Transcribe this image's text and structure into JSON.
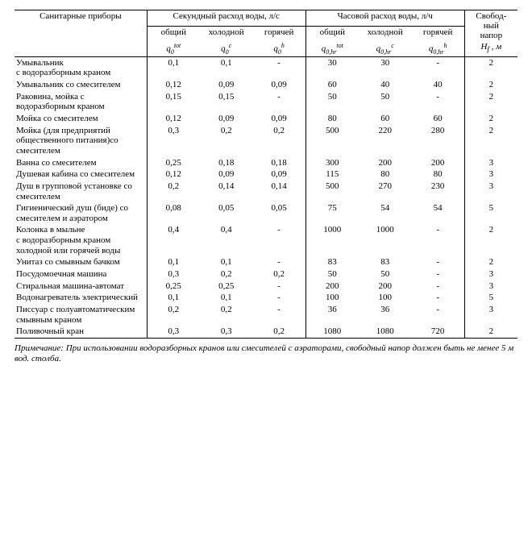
{
  "header": {
    "col_devices": "Санитарные приборы",
    "col_sec": "Секундный расход воды, л/с",
    "col_hr": "Часовой расход воды, л/ч",
    "col_nap": "Свобод-\nный напор",
    "sub_total": "общий",
    "sub_cold": "холодной",
    "sub_hot": "горячей",
    "f_q0tot": "q₀ᵗᵒᵗ",
    "f_q0c": "q₀ᶜ",
    "f_q0h": "q₀ʰ",
    "f_q0hrtot": "q₀,hrᵗᵒᵗ",
    "f_q0hrc": "q₀,hrᶜ",
    "f_q0hrh": "q₀,hrʰ",
    "f_Hf": "H_f , м"
  },
  "rows": [
    {
      "name": "Умывальник\nс водоразборным краном",
      "q0t": "0,1",
      "q0c": "0,1",
      "q0h": "-",
      "qht": "30",
      "qhc": "30",
      "qhh": "-",
      "hf": "2"
    },
    {
      "name": "Умывальник со смесителем",
      "q0t": "0,12",
      "q0c": "0,09",
      "q0h": "0,09",
      "qht": "60",
      "qhc": "40",
      "qhh": "40",
      "hf": "2"
    },
    {
      "name": "Раковина, мойка с водоразборным краном",
      "q0t": "0,15",
      "q0c": "0,15",
      "q0h": "-",
      "qht": "50",
      "qhc": "50",
      "qhh": "-",
      "hf": "2"
    },
    {
      "name": "Мойка со смесителем",
      "q0t": "0,12",
      "q0c": "0,09",
      "q0h": "0,09",
      "qht": "80",
      "qhc": "60",
      "qhh": "60",
      "hf": "2"
    },
    {
      "name": "Мойка (для предприятий общественного питания)со смесителем",
      "q0t": "0,3",
      "q0c": "0,2",
      "q0h": "0,2",
      "qht": "500",
      "qhc": "220",
      "qhh": "280",
      "hf": "2"
    },
    {
      "name": "Ванна со смесителем",
      "q0t": "0,25",
      "q0c": "0,18",
      "q0h": "0,18",
      "qht": "300",
      "qhc": "200",
      "qhh": "200",
      "hf": "3"
    },
    {
      "name": "Душевая кабина со смесителем",
      "q0t": "0,12",
      "q0c": "0,09",
      "q0h": "0,09",
      "qht": "115",
      "qhc": "80",
      "qhh": "80",
      "hf": "3"
    },
    {
      "name": "Душ в групповой установке со смесителем",
      "q0t": "0,2",
      "q0c": "0,14",
      "q0h": "0,14",
      "qht": "500",
      "qhc": "270",
      "qhh": "230",
      "hf": "3"
    },
    {
      "name": "Гигиенический душ (биде) со смесителем и аэратором",
      "q0t": "0,08",
      "q0c": "0,05",
      "q0h": "0,05",
      "qht": "75",
      "qhc": "54",
      "qhh": "54",
      "hf": "5"
    },
    {
      "name": "Колонка в мыльне\nс водоразборным краном холодной или горячей воды",
      "q0t": "0,4",
      "q0c": "0,4",
      "q0h": "-",
      "qht": "1000",
      "qhc": "1000",
      "qhh": "-",
      "hf": "2"
    },
    {
      "name": "Унитаз со смывным бачком",
      "q0t": "0,1",
      "q0c": "0,1",
      "q0h": "-",
      "qht": "83",
      "qhc": "83",
      "qhh": "-",
      "hf": "2"
    },
    {
      "name": "Посудомоечная машина",
      "q0t": "0,3",
      "q0c": "0,2",
      "q0h": "0,2",
      "qht": "50",
      "qhc": "50",
      "qhh": "-",
      "hf": "3"
    },
    {
      "name": "Стиральная машина-автомат",
      "q0t": "0,25",
      "q0c": "0,25",
      "q0h": "-",
      "qht": "200",
      "qhc": "200",
      "qhh": "-",
      "hf": "3"
    },
    {
      "name": "Водонагреватель электрический",
      "q0t": "0,1",
      "q0c": "0,1",
      "q0h": "-",
      "qht": "100",
      "qhc": "100",
      "qhh": "-",
      "hf": "5"
    },
    {
      "name": "Писсуар с полуавтоматическим смывным краном",
      "q0t": "0,2",
      "q0c": "0,2",
      "q0h": "-",
      "qht": "36",
      "qhc": "36",
      "qhh": "-",
      "hf": "3"
    },
    {
      "name": "Поливочный кран",
      "q0t": "0,3",
      "q0c": "0,3",
      "q0h": "0,2",
      "qht": "1080",
      "qhc": "1080",
      "qhh": "720",
      "hf": "2"
    }
  ],
  "note": "Примечание: При использовании водоразборных кранов или смесителей с аэраторами, свободный напор должен быть не менее 5 м вод. столба."
}
